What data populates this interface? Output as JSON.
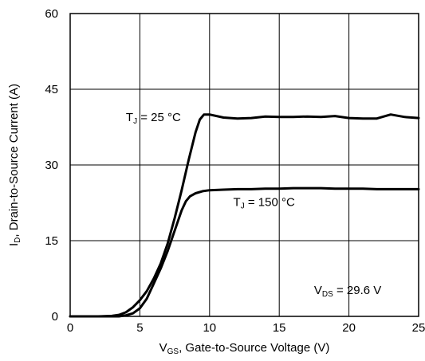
{
  "chart_data": {
    "type": "line",
    "xlabel": {
      "main": "V",
      "sub": "GS",
      "rest": ", Gate-to-Source Voltage (V)"
    },
    "ylabel": {
      "main": "I",
      "sub": "D",
      "rest": ", Drain-to-Source Current (A)"
    },
    "xlim": [
      0,
      25
    ],
    "ylim": [
      0,
      60
    ],
    "xticks": [
      0,
      5,
      10,
      15,
      20,
      25
    ],
    "yticks": [
      0,
      15,
      30,
      45,
      60
    ],
    "grid": true,
    "legend": "none",
    "line_color": "#000000",
    "series": [
      {
        "name": "T_J = 25 °C",
        "x": [
          0,
          1,
          2,
          3,
          3.5,
          4,
          4.5,
          5,
          5.5,
          6,
          6.5,
          7,
          7.5,
          8,
          8.5,
          9,
          9.3,
          9.6,
          10,
          11,
          12,
          13,
          14,
          15,
          16,
          17,
          18,
          19,
          20,
          21,
          22,
          23,
          24,
          25
        ],
        "y": [
          0,
          0,
          0,
          0.1,
          0.3,
          0.8,
          1.8,
          3.2,
          5.0,
          7.5,
          10.5,
          14.5,
          19.5,
          25.0,
          31.0,
          36.5,
          39.0,
          40.0,
          40.0,
          39.4,
          39.2,
          39.3,
          39.6,
          39.5,
          39.5,
          39.6,
          39.5,
          39.7,
          39.3,
          39.2,
          39.2,
          40.0,
          39.5,
          39.3
        ]
      },
      {
        "name": "T_J = 150 °C",
        "x": [
          0,
          2,
          3,
          3.5,
          4,
          4.5,
          5,
          5.5,
          6,
          6.5,
          7,
          7.5,
          8,
          8.3,
          8.6,
          9,
          9.5,
          10,
          11,
          12,
          13,
          14,
          15,
          16,
          17,
          18,
          19,
          20,
          21,
          22,
          23,
          24,
          25
        ],
        "y": [
          0,
          0,
          0,
          0,
          0.2,
          0.6,
          1.6,
          3.5,
          6.5,
          9.5,
          13.0,
          17.0,
          21.0,
          22.8,
          23.8,
          24.4,
          24.8,
          25.0,
          25.1,
          25.2,
          25.2,
          25.3,
          25.3,
          25.4,
          25.4,
          25.4,
          25.3,
          25.3,
          25.3,
          25.2,
          25.2,
          25.2,
          25.2
        ]
      }
    ],
    "annotations": [
      {
        "main": "T",
        "sub": "J",
        "rest": " = 25 °C",
        "x": 4.0,
        "y": 38.7
      },
      {
        "main": "T",
        "sub": "J",
        "rest": " = 150 °C",
        "x": 11.7,
        "y": 21.9
      },
      {
        "main": "V",
        "sub": "DS",
        "rest": " = 29.6 V",
        "x": 17.5,
        "y": 4.4
      }
    ]
  }
}
